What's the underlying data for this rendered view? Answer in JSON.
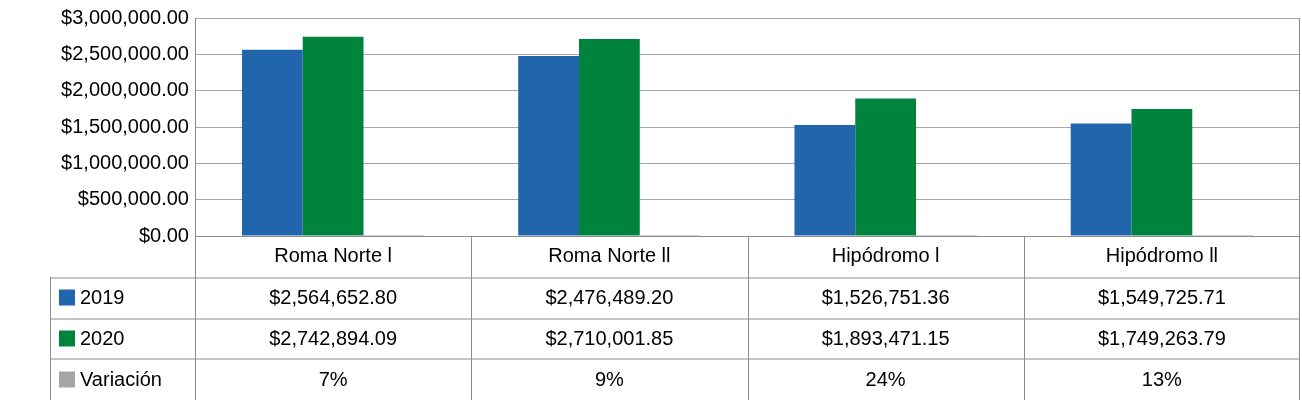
{
  "chart_data": {
    "type": "bar",
    "categories": [
      "Roma Norte l",
      "Roma Norte ll",
      "Hipódromo l",
      "Hipódromo ll"
    ],
    "series": [
      {
        "name": "2019",
        "color": "#2166ac",
        "values": [
          2564652.8,
          2476489.2,
          1526751.36,
          1549725.71
        ],
        "value_labels": [
          "$2,564,652.80",
          "$2,476,489.20",
          "$1,526,751.36",
          "$1,549,725.71"
        ]
      },
      {
        "name": "2020",
        "color": "#00843d",
        "values": [
          2742894.09,
          2710001.85,
          1893471.15,
          1749263.79
        ],
        "value_labels": [
          "$2,742,894.09",
          "$2,710,001.85",
          "$1,893,471.15",
          "$1,749,263.79"
        ]
      },
      {
        "name": "Variación",
        "color": "#a6a6a6",
        "values": [
          0.07,
          0.09,
          0.24,
          0.13
        ],
        "value_labels": [
          "7%",
          "9%",
          "24%",
          "13%"
        ]
      }
    ],
    "ylim": [
      0,
      3000000
    ],
    "yticks": [
      {
        "value": 0,
        "label": "$0.00"
      },
      {
        "value": 500000,
        "label": "$500,000.00"
      },
      {
        "value": 1000000,
        "label": "$1,000,000.00"
      },
      {
        "value": 1500000,
        "label": "$1,500,000.00"
      },
      {
        "value": 2000000,
        "label": "$2,000,000.00"
      },
      {
        "value": 2500000,
        "label": "$2,500,000.00"
      },
      {
        "value": 3000000,
        "label": "$3,000,000.00"
      }
    ],
    "grid": "y",
    "legend": "bottom"
  }
}
